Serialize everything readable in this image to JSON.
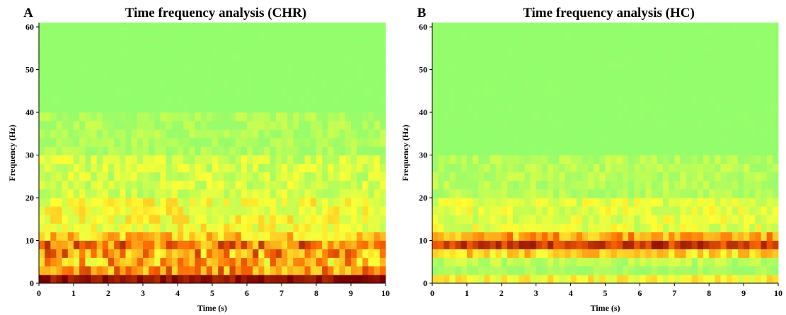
{
  "colors": {
    "background": "#8cff6e",
    "low": "#9afc6a",
    "mid": "#ffff33",
    "high": "#ff6600",
    "peak": "#7a0000"
  },
  "chart_data": [
    {
      "panel_label": "A",
      "type": "heatmap",
      "title": "Time frequency analysis (CHR)",
      "xlabel": "Time (s)",
      "ylabel": "Frequency (Hz)",
      "xlim": [
        0,
        10
      ],
      "ylim": [
        0,
        61
      ],
      "xticks": [
        0,
        1,
        2,
        3,
        4,
        5,
        6,
        7,
        8,
        9,
        10
      ],
      "yticks": [
        0,
        10,
        20,
        30,
        40,
        50,
        60
      ],
      "time_bins": 60,
      "freq_bin_hz": 2,
      "bands": [
        {
          "freq_range": [
            0,
            2
          ],
          "level": 0.95,
          "variability": 0.08
        },
        {
          "freq_range": [
            2,
            4
          ],
          "level": 0.62,
          "variability": 0.18
        },
        {
          "freq_range": [
            4,
            6
          ],
          "level": 0.55,
          "variability": 0.22
        },
        {
          "freq_range": [
            6,
            8
          ],
          "level": 0.6,
          "variability": 0.22
        },
        {
          "freq_range": [
            8,
            10
          ],
          "level": 0.68,
          "variability": 0.22
        },
        {
          "freq_range": [
            10,
            12
          ],
          "level": 0.5,
          "variability": 0.15
        },
        {
          "freq_range": [
            12,
            20
          ],
          "level": 0.38,
          "variability": 0.12
        },
        {
          "freq_range": [
            20,
            30
          ],
          "level": 0.3,
          "variability": 0.1
        },
        {
          "freq_range": [
            30,
            40
          ],
          "level": 0.22,
          "variability": 0.07
        },
        {
          "freq_range": [
            40,
            61
          ],
          "level": 0.1,
          "variability": 0.03
        }
      ]
    },
    {
      "panel_label": "B",
      "type": "heatmap",
      "title": "Time frequency analysis (HC)",
      "xlabel": "Time (s)",
      "ylabel": "Frequency (Hz)",
      "xlim": [
        0,
        10
      ],
      "ylim": [
        0,
        61
      ],
      "xticks": [
        0,
        1,
        2,
        3,
        4,
        5,
        6,
        7,
        8,
        9,
        10
      ],
      "yticks": [
        0,
        10,
        20,
        30,
        40,
        50,
        60
      ],
      "time_bins": 60,
      "freq_bin_hz": 2,
      "bands": [
        {
          "freq_range": [
            0,
            2
          ],
          "level": 0.4,
          "variability": 0.1
        },
        {
          "freq_range": [
            2,
            4
          ],
          "level": 0.2,
          "variability": 0.06
        },
        {
          "freq_range": [
            4,
            6
          ],
          "level": 0.25,
          "variability": 0.08
        },
        {
          "freq_range": [
            6,
            8
          ],
          "level": 0.48,
          "variability": 0.12
        },
        {
          "freq_range": [
            8,
            10
          ],
          "level": 0.82,
          "variability": 0.12
        },
        {
          "freq_range": [
            10,
            12
          ],
          "level": 0.58,
          "variability": 0.14
        },
        {
          "freq_range": [
            12,
            20
          ],
          "level": 0.34,
          "variability": 0.1
        },
        {
          "freq_range": [
            20,
            30
          ],
          "level": 0.24,
          "variability": 0.07
        },
        {
          "freq_range": [
            30,
            61
          ],
          "level": 0.1,
          "variability": 0.03
        }
      ]
    }
  ]
}
